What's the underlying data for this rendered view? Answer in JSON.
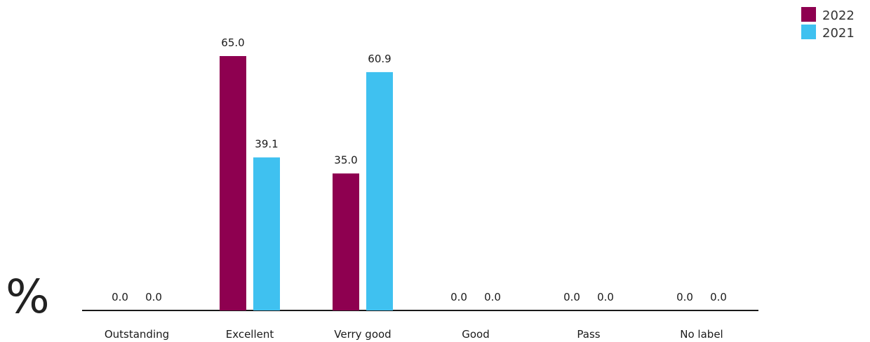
{
  "chart_data": {
    "type": "bar",
    "title": "",
    "xlabel": "",
    "ylabel": "%",
    "categories": [
      "Outstanding",
      "Excellent",
      "Verry good",
      "Good",
      "Pass",
      "No label"
    ],
    "series": [
      {
        "name": "2022",
        "color": "#8e0050",
        "values": [
          0.0,
          65.0,
          35.0,
          0.0,
          0.0,
          0.0
        ]
      },
      {
        "name": "2021",
        "color": "#3fc1f0",
        "values": [
          0.0,
          39.1,
          60.9,
          0.0,
          0.0,
          0.0
        ]
      }
    ],
    "ylim": [
      0,
      100
    ],
    "grid": false,
    "legend": "top-right",
    "data_labels": true,
    "value_format_decimals": 1
  }
}
